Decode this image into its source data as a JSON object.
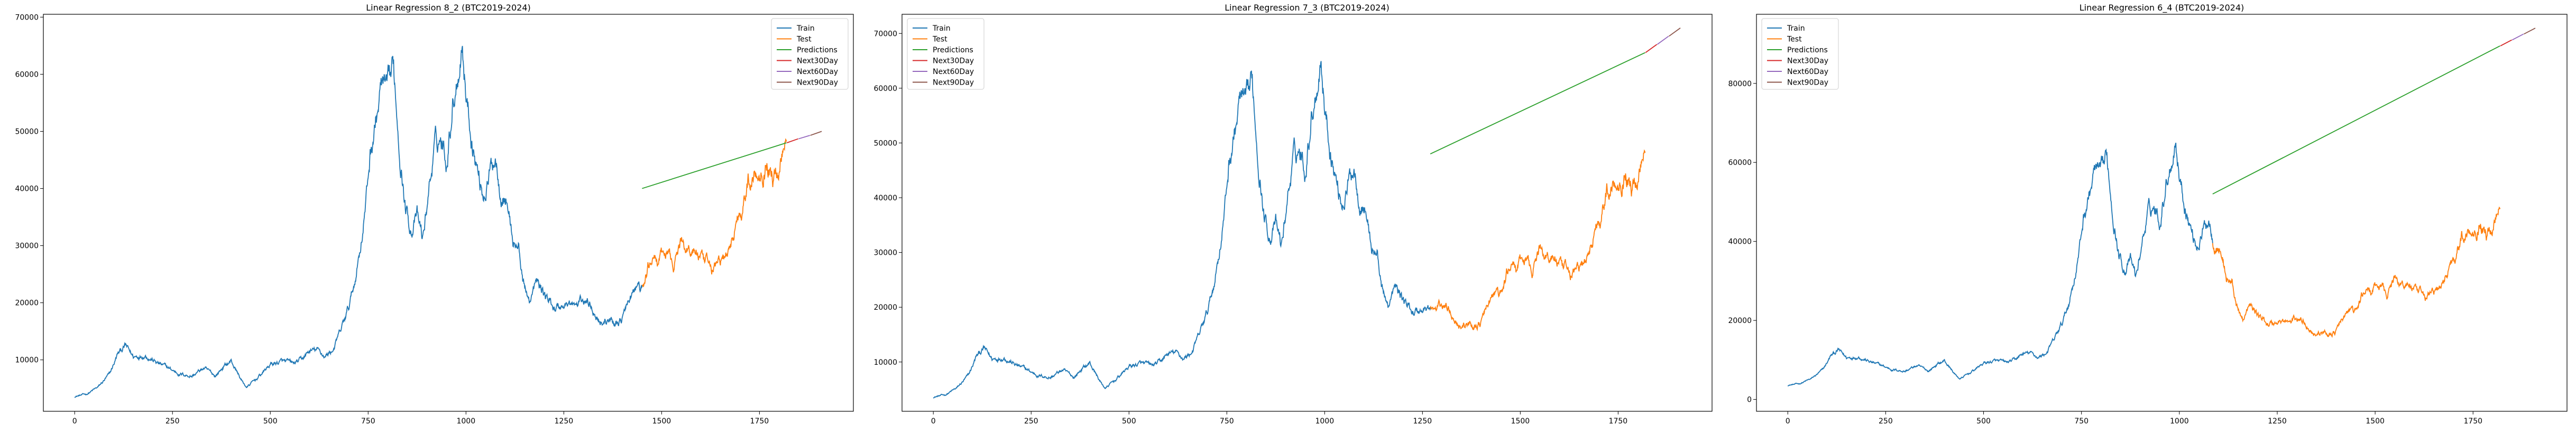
{
  "chart_data": [
    {
      "type": "line",
      "title": "Linear Regression 8_2 (BTC2019-2024)",
      "xlabel": "",
      "ylabel": "",
      "xlim": [
        -80,
        1990
      ],
      "ylim": [
        1000,
        70500
      ],
      "xticks": [
        0,
        250,
        500,
        750,
        1000,
        1250,
        1500,
        1750
      ],
      "yticks": [
        10000,
        20000,
        30000,
        40000,
        50000,
        60000,
        70000
      ],
      "legend": [
        "Train",
        "Test",
        "Predictions",
        "Next30Day",
        "Next60Day",
        "Next90Day"
      ],
      "legend_position": "top-right",
      "split_index": 1450,
      "end_index": 1819,
      "predictions": {
        "x": [
          1450,
          1819
        ],
        "y": [
          40000,
          48000
        ]
      },
      "next30": {
        "x": [
          1820,
          1849
        ],
        "y": [
          48000,
          48700
        ]
      },
      "next60": {
        "x": [
          1850,
          1879
        ],
        "y": [
          48700,
          49300
        ]
      },
      "next90": {
        "x": [
          1880,
          1909
        ],
        "y": [
          49300,
          50000
        ]
      }
    },
    {
      "type": "line",
      "title": "Linear Regression 7_3 (BTC2019-2024)",
      "xlabel": "",
      "ylabel": "",
      "xlim": [
        -80,
        1990
      ],
      "ylim": [
        1000,
        73500
      ],
      "xticks": [
        0,
        250,
        500,
        750,
        1000,
        1250,
        1500,
        1750
      ],
      "yticks": [
        10000,
        20000,
        30000,
        40000,
        50000,
        60000,
        70000
      ],
      "legend": [
        "Train",
        "Test",
        "Predictions",
        "Next30Day",
        "Next60Day",
        "Next90Day"
      ],
      "legend_position": "top-left",
      "split_index": 1270,
      "end_index": 1819,
      "predictions": {
        "x": [
          1270,
          1819
        ],
        "y": [
          48000,
          66500
        ]
      },
      "next30": {
        "x": [
          1820,
          1849
        ],
        "y": [
          66500,
          68000
        ]
      },
      "next60": {
        "x": [
          1850,
          1879
        ],
        "y": [
          68000,
          69500
        ]
      },
      "next90": {
        "x": [
          1880,
          1909
        ],
        "y": [
          69500,
          71000
        ]
      }
    },
    {
      "type": "line",
      "title": "Linear Regression 6_4 (BTC2019-2024)",
      "xlabel": "",
      "ylabel": "",
      "xlim": [
        -80,
        1990
      ],
      "ylim": [
        -3000,
        97500
      ],
      "xticks": [
        0,
        250,
        500,
        750,
        1000,
        1250,
        1500,
        1750
      ],
      "yticks": [
        0,
        20000,
        40000,
        60000,
        80000
      ],
      "legend": [
        "Train",
        "Test",
        "Predictions",
        "Next30Day",
        "Next60Day",
        "Next90Day"
      ],
      "legend_position": "top-left",
      "split_index": 1085,
      "end_index": 1819,
      "predictions": {
        "x": [
          1085,
          1819
        ],
        "y": [
          52000,
          89500
        ]
      },
      "next30": {
        "x": [
          1820,
          1849
        ],
        "y": [
          89500,
          91000
        ]
      },
      "next60": {
        "x": [
          1850,
          1879
        ],
        "y": [
          91000,
          92500
        ]
      },
      "next90": {
        "x": [
          1880,
          1909
        ],
        "y": [
          92500,
          94000
        ]
      }
    }
  ],
  "price_series": {
    "description": "Approximate BTC close price anchors (index, USD)",
    "anchors": [
      [
        0,
        3600
      ],
      [
        30,
        4000
      ],
      [
        60,
        5200
      ],
      [
        90,
        7500
      ],
      [
        110,
        11000
      ],
      [
        130,
        12500
      ],
      [
        150,
        10500
      ],
      [
        180,
        11000
      ],
      [
        210,
        9500
      ],
      [
        240,
        8500
      ],
      [
        270,
        7500
      ],
      [
        300,
        7200
      ],
      [
        330,
        8500
      ],
      [
        360,
        7200
      ],
      [
        380,
        8800
      ],
      [
        400,
        9800
      ],
      [
        430,
        6000
      ],
      [
        440,
        5200
      ],
      [
        470,
        7000
      ],
      [
        500,
        9200
      ],
      [
        530,
        9700
      ],
      [
        560,
        9300
      ],
      [
        580,
        10000
      ],
      [
        600,
        11500
      ],
      [
        620,
        11700
      ],
      [
        640,
        10600
      ],
      [
        660,
        11800
      ],
      [
        680,
        15000
      ],
      [
        700,
        19000
      ],
      [
        715,
        23500
      ],
      [
        730,
        30000
      ],
      [
        745,
        38000
      ],
      [
        755,
        46000
      ],
      [
        770,
        52000
      ],
      [
        785,
        58000
      ],
      [
        800,
        56000
      ],
      [
        815,
        60500
      ],
      [
        830,
        48000
      ],
      [
        845,
        37000
      ],
      [
        860,
        33000
      ],
      [
        875,
        35000
      ],
      [
        890,
        31000
      ],
      [
        905,
        40000
      ],
      [
        920,
        47000
      ],
      [
        935,
        49000
      ],
      [
        950,
        45000
      ],
      [
        965,
        55000
      ],
      [
        980,
        61000
      ],
      [
        990,
        66500
      ],
      [
        1000,
        57000
      ],
      [
        1015,
        49000
      ],
      [
        1030,
        43000
      ],
      [
        1045,
        39000
      ],
      [
        1060,
        42500
      ],
      [
        1075,
        46000
      ],
      [
        1090,
        40000
      ],
      [
        1105,
        38000
      ],
      [
        1120,
        31000
      ],
      [
        1135,
        29500
      ],
      [
        1150,
        22000
      ],
      [
        1165,
        20500
      ],
      [
        1180,
        23500
      ],
      [
        1200,
        21500
      ],
      [
        1220,
        19500
      ],
      [
        1240,
        19200
      ],
      [
        1260,
        20000
      ],
      [
        1280,
        19300
      ],
      [
        1300,
        20500
      ],
      [
        1320,
        19800
      ],
      [
        1340,
        17000
      ],
      [
        1360,
        16800
      ],
      [
        1380,
        16500
      ],
      [
        1400,
        17300
      ],
      [
        1420,
        21000
      ],
      [
        1440,
        23000
      ],
      [
        1450,
        22000
      ],
      [
        1460,
        24500
      ],
      [
        1475,
        28000
      ],
      [
        1490,
        27200
      ],
      [
        1510,
        28500
      ],
      [
        1530,
        27000
      ],
      [
        1550,
        30500
      ],
      [
        1570,
        29500
      ],
      [
        1590,
        29000
      ],
      [
        1610,
        26500
      ],
      [
        1630,
        26000
      ],
      [
        1650,
        27500
      ],
      [
        1670,
        28000
      ],
      [
        1690,
        34000
      ],
      [
        1705,
        37000
      ],
      [
        1720,
        41000
      ],
      [
        1740,
        43000
      ],
      [
        1755,
        43500
      ],
      [
        1770,
        45000
      ],
      [
        1785,
        42000
      ],
      [
        1800,
        43500
      ],
      [
        1810,
        48000
      ],
      [
        1819,
        51800
      ]
    ]
  },
  "colors": {
    "train": "#1f77b4",
    "test": "#ff7f0e",
    "predictions": "#2ca02c",
    "next30": "#d62728",
    "next60": "#9467bd",
    "next90": "#8c564b"
  }
}
